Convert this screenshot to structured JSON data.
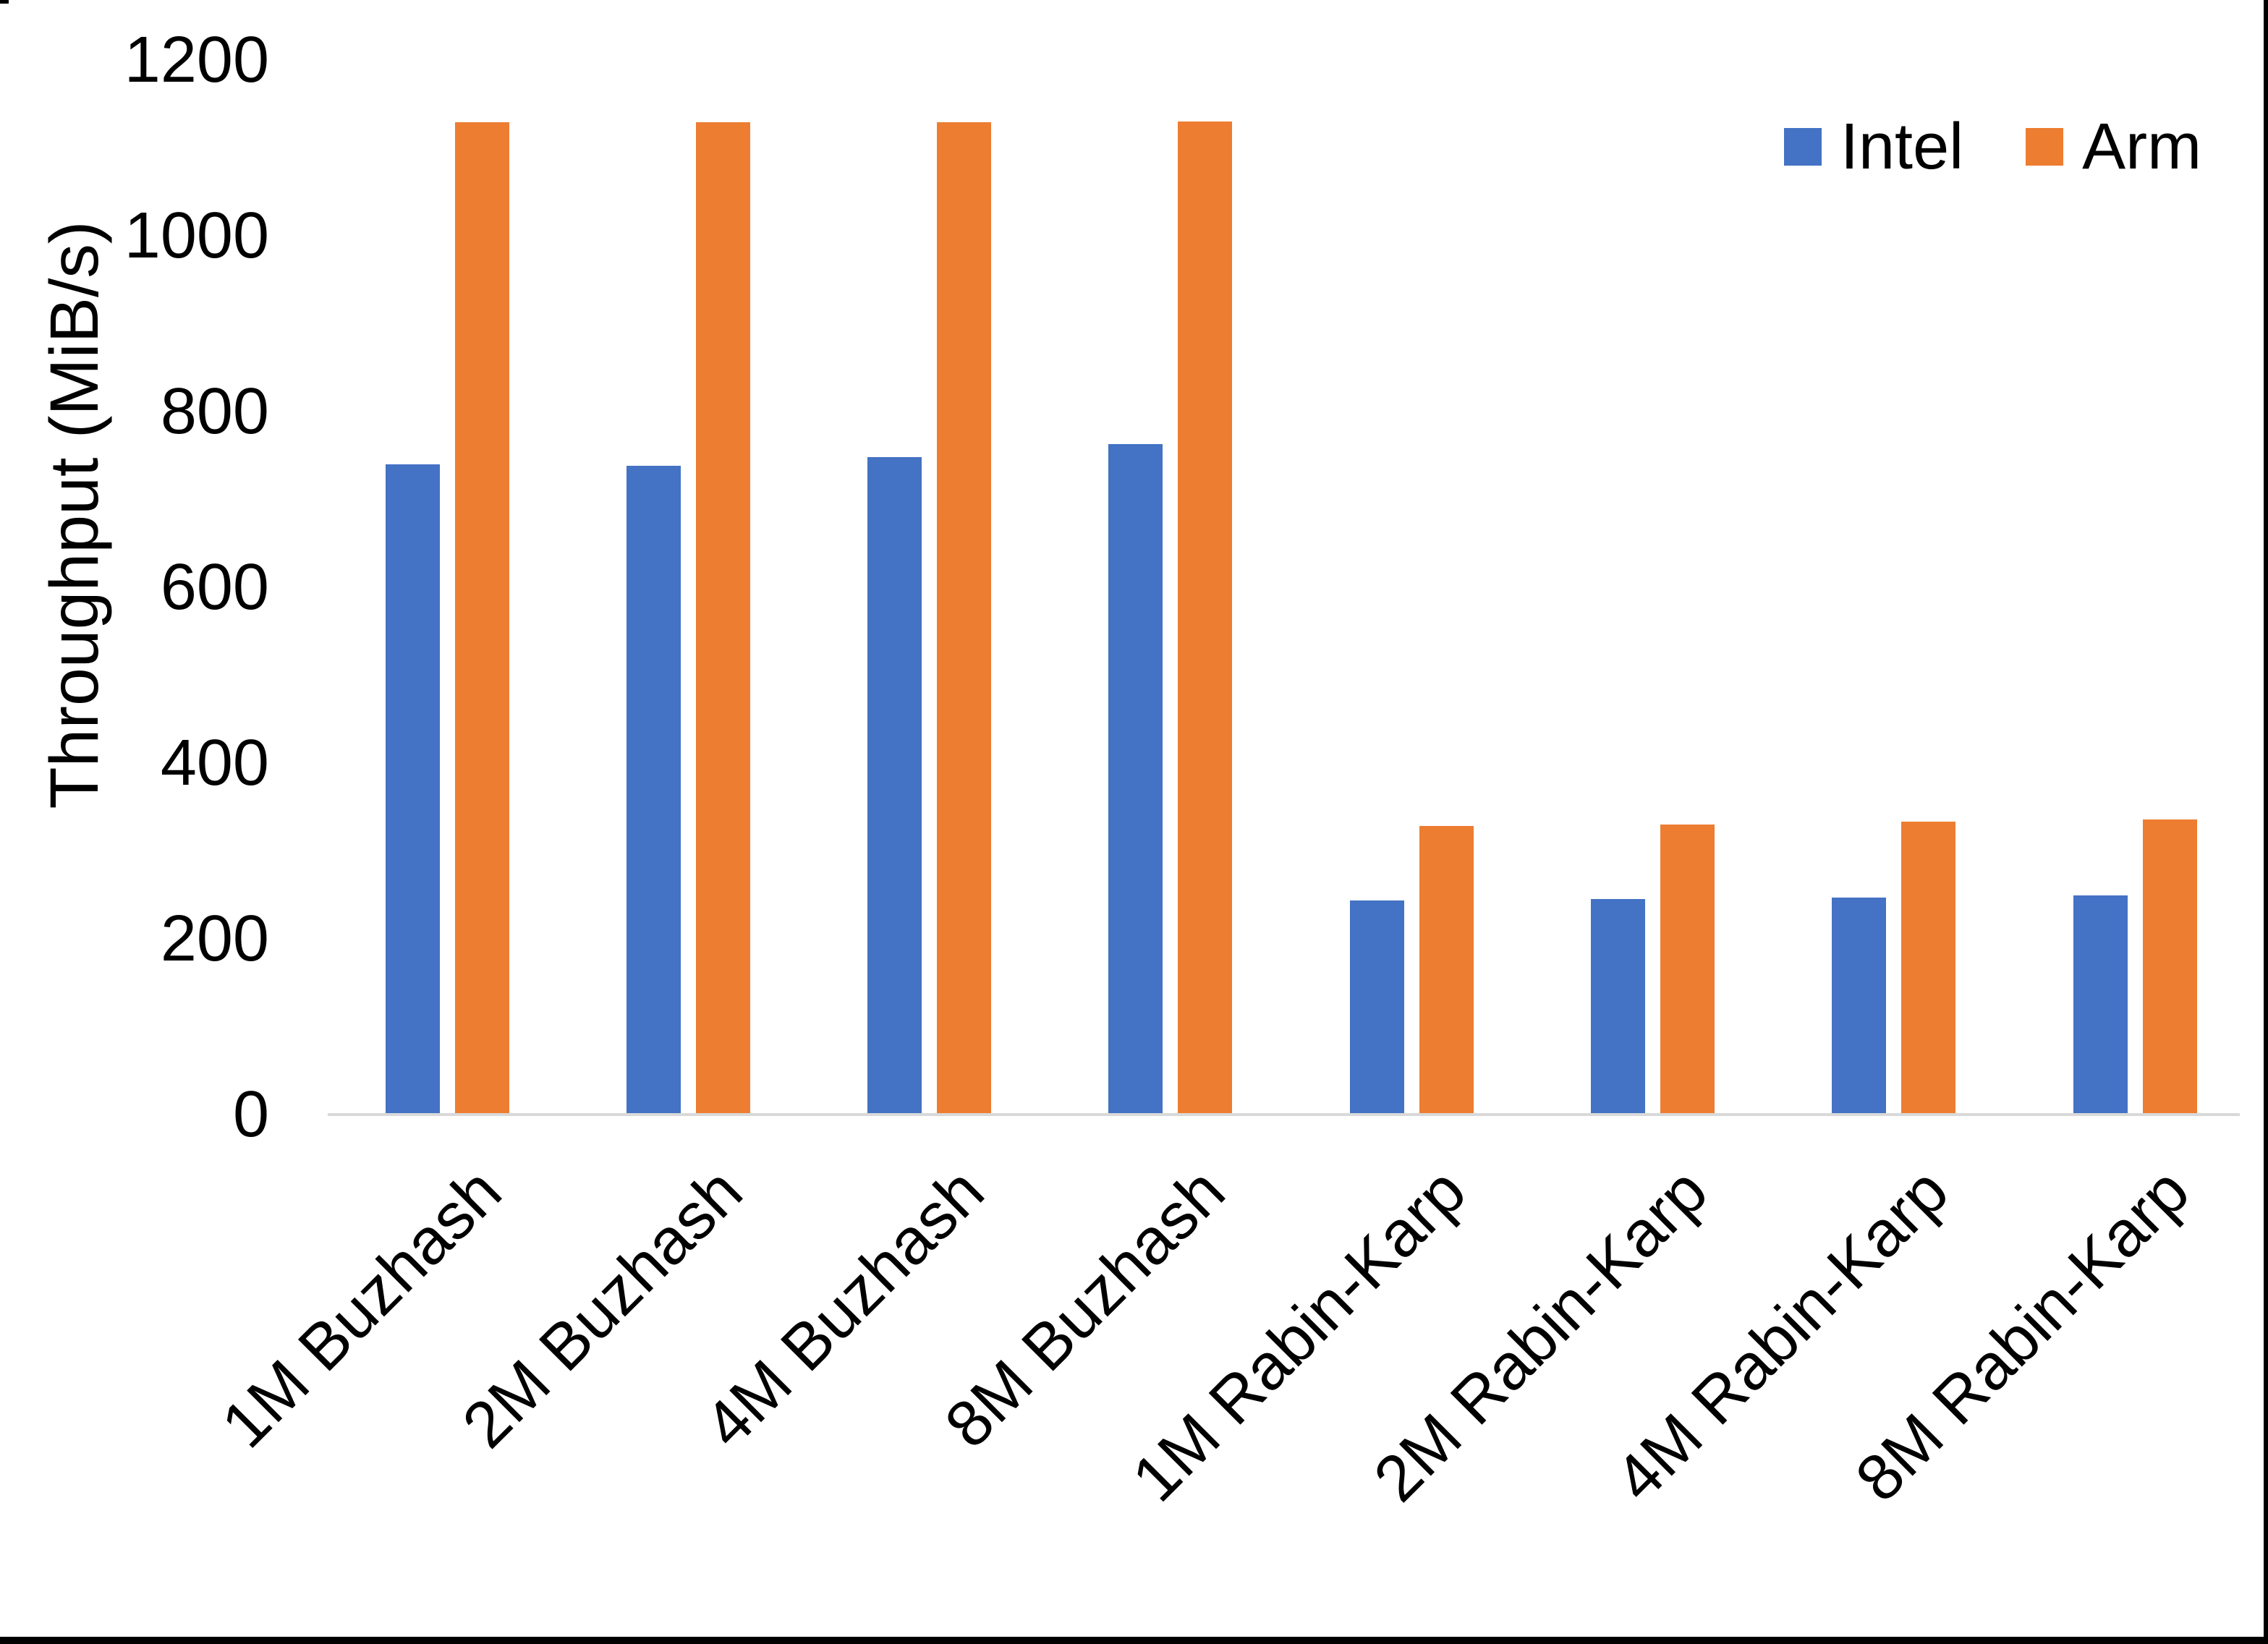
{
  "chart_data": {
    "type": "bar",
    "title": "",
    "xlabel": "",
    "ylabel": "Throughput (MiB/s)",
    "categories": [
      "1M Buzhash",
      "2M Buzhash",
      "4M Buzhash",
      "8M Buzhash",
      "1M Rabin-Karp",
      "2M Rabin-Karp",
      "4M Rabin-Karp",
      "8M Rabin-Karp"
    ],
    "series": [
      {
        "name": "Intel",
        "color": "#4472C4",
        "values": [
          740,
          738,
          748,
          763,
          244,
          245,
          247,
          249
        ]
      },
      {
        "name": "Arm",
        "color": "#ED7D31",
        "values": [
          1129,
          1129,
          1129,
          1130,
          328,
          330,
          333,
          336
        ]
      }
    ],
    "ylim": [
      0,
      1200
    ],
    "yticks": [
      0,
      200,
      400,
      600,
      800,
      1000,
      1200
    ],
    "grid": false,
    "legend_position": "top-right",
    "axis_line_color": "#D9D9D9",
    "text_color": "#000000",
    "background_color": "#FFFFFF",
    "border_color": "#000000"
  }
}
